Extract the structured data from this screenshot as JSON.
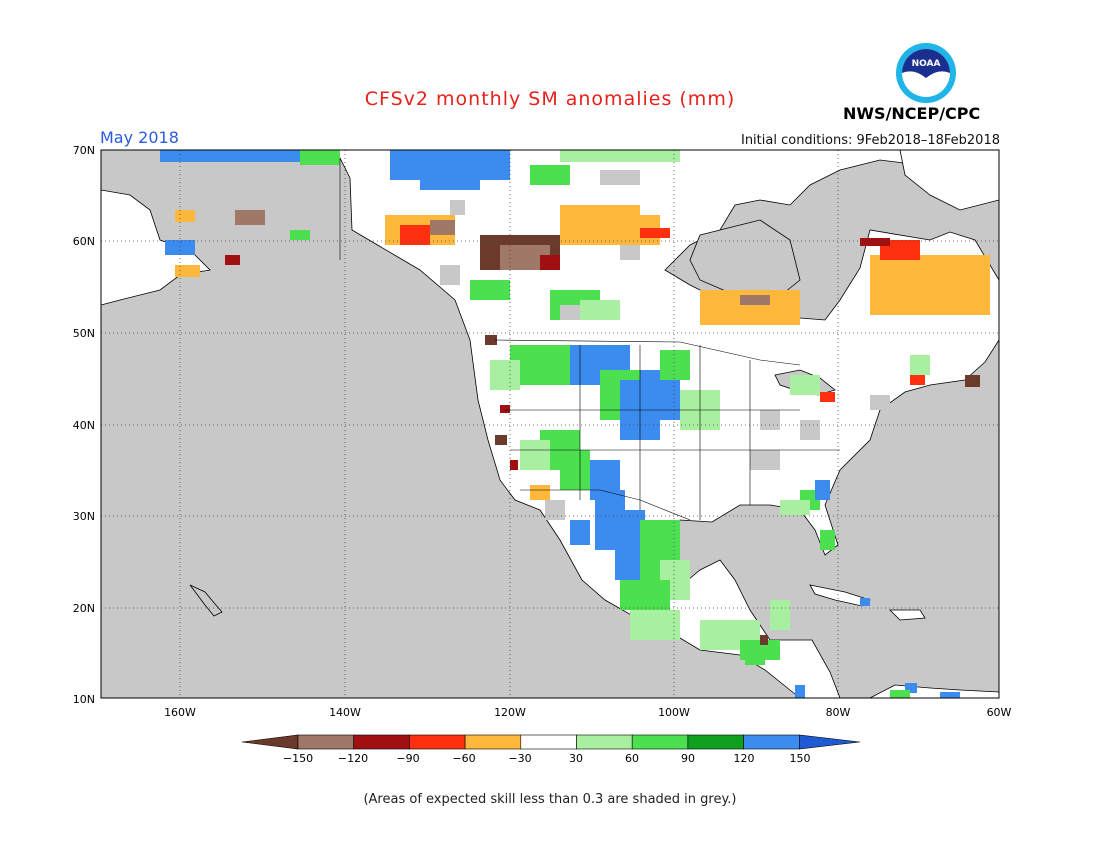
{
  "header": {
    "title": "CFSv2 monthly SM anomalies (mm)",
    "month": "May 2018",
    "initial_conditions": "Initial conditions: 9Feb2018–18Feb2018",
    "agency": "NWS/NCEP/CPC",
    "logo_text": "NOAA"
  },
  "map": {
    "lat_labels": [
      "70N",
      "60N",
      "50N",
      "40N",
      "30N",
      "20N",
      "10N"
    ],
    "lon_labels": [
      "160W",
      "140W",
      "120W",
      "100W",
      "80W",
      "60W"
    ],
    "land_color": "#ffffff",
    "skill_mask_color": "#c8c8c8"
  },
  "legend": {
    "labels": [
      "−150",
      "−120",
      "−90",
      "−60",
      "−30",
      "30",
      "60",
      "90",
      "120",
      "150"
    ],
    "colors": [
      "#6b3a2a",
      "#a07868",
      "#a01010",
      "#ff3010",
      "#ffb83c",
      "#ffffff",
      "#a8f0a0",
      "#4ce050",
      "#10a020",
      "#3c8cf0",
      "#1e5ad2"
    ]
  },
  "footnote": "(Areas of expected skill less than 0.3 are shaded in grey.)"
}
